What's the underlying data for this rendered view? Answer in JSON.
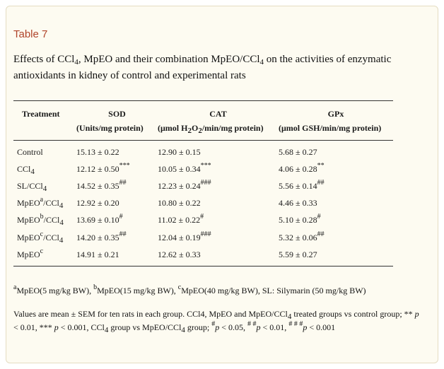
{
  "table_label": "Table 7",
  "caption": {
    "p1": "Effects of CCl",
    "s1": "4",
    "p2": ", MpEO and their combination MpEO/CCl",
    "s2": "4",
    "p3": " on the activities of enzymatic antioxidants in kidney of control and experimental rats"
  },
  "header": {
    "treatment": "Treatment",
    "sod": "SOD",
    "sod_unit": "(Units/mg protein)",
    "cat": "CAT",
    "cat_unit_a": "(μmol H",
    "cat_unit_s1": "2",
    "cat_unit_b": "O",
    "cat_unit_s2": "2",
    "cat_unit_c": "/min/mg protein)",
    "gpx": "GPx",
    "gpx_unit": "(μmol GSH/min/mg protein)"
  },
  "rows": [
    {
      "name": "Control",
      "name_sup": "",
      "name_rest": "",
      "sod": "15.13 ± 0.22",
      "sod_sig": "",
      "cat": "12.90 ± 0.15",
      "cat_sig": "",
      "gpx": "5.68 ± 0.27",
      "gpx_sig": ""
    },
    {
      "name": "CCl",
      "name_sub": "4",
      "name_sup": "",
      "name_rest": "",
      "sod": "12.12 ± 0.50",
      "sod_sig": "***",
      "cat": "10.05 ± 0.34",
      "cat_sig": "***",
      "gpx": "4.06 ± 0.28",
      "gpx_sig": "**"
    },
    {
      "name": "SL/CCl",
      "name_sub": "4",
      "name_sup": "",
      "name_rest": "",
      "sod": "14.52 ± 0.35",
      "sod_sig": "##",
      "cat": "12.23 ± 0.24",
      "cat_sig": "###",
      "gpx": "5.56 ± 0.14",
      "gpx_sig": "##"
    },
    {
      "name": "MpEO",
      "name_sup": "a",
      "name_rest": "/CCl",
      "name_sub": "4",
      "sod": "12.92 ± 0.20",
      "sod_sig": "",
      "cat": "10.80 ± 0.22",
      "cat_sig": "",
      "gpx": "4.46 ± 0.33",
      "gpx_sig": ""
    },
    {
      "name": "MpEO",
      "name_sup": "b",
      "name_rest": "/CCl",
      "name_sub": "4",
      "sod": "13.69 ± 0.10",
      "sod_sig": "#",
      "cat": "11.02 ± 0.22",
      "cat_sig": "#",
      "gpx": "5.10 ± 0.28",
      "gpx_sig": "#"
    },
    {
      "name": "MpEO",
      "name_sup": "c",
      "name_rest": "/CCl",
      "name_sub": "4",
      "sod": "14.20 ± 0.35",
      "sod_sig": "##",
      "cat": "12.04 ± 0.19",
      "cat_sig": "###",
      "gpx": "5.32 ± 0.06",
      "gpx_sig": "##"
    },
    {
      "name": "MpEO",
      "name_sup": "c",
      "name_rest": "",
      "name_sub": "",
      "sod": "14.91 ± 0.21",
      "sod_sig": "",
      "cat": "12.62 ± 0.33",
      "cat_sig": "",
      "gpx": "5.59 ± 0.27",
      "gpx_sig": ""
    }
  ],
  "footnote1": {
    "a_sup": "a",
    "a_text": "MpEO(5 mg/kg BW), ",
    "b_sup": "b",
    "b_text": "MpEO(15 mg/kg BW), ",
    "c_sup": "c",
    "c_text": "MpEO(40 mg/kg BW), SL: Silymarin (50 mg/kg BW)"
  },
  "footnote2": {
    "t1": "Values are mean ± SEM for ten rats in each group. CCl4, MpEO and MpEO/CCl",
    "s1": "4",
    "t2": " treated groups vs control group; ** ",
    "p_a": "p",
    "t3": " < 0.01, *** ",
    "p_b": "p",
    "t4": " < 0.001, CCl",
    "s2": "4",
    "t5": " group vs MpEO/CCl",
    "s3": "4",
    "t6": " group; ",
    "h1": "#",
    "p_c": "p",
    "t7": " < 0.05, ",
    "h2": "# #",
    "p_d": "p",
    "t8": " < 0.01, ",
    "h3": "# # #",
    "p_e": "p",
    "t9": " < 0.001"
  }
}
